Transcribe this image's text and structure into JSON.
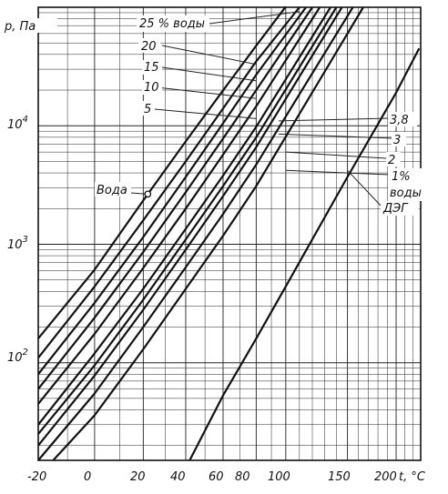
{
  "chart_data": {
    "type": "line",
    "title": "",
    "xlabel": "t, °C",
    "ylabel": "p, Па",
    "x_scale": "reciprocal-temperature",
    "y_scale": "log",
    "xlim": [
      -20,
      230
    ],
    "ylim": [
      15,
      100000
    ],
    "grid": true,
    "x_tick_labels": [
      "-20",
      "0",
      "20",
      "40",
      "60",
      "80",
      "100",
      "150",
      "200"
    ],
    "y_tick_labels": [
      {
        "base": "10",
        "exp": "2",
        "value": 100
      },
      {
        "base": "10",
        "exp": "3",
        "value": 1000
      },
      {
        "base": "10",
        "exp": "4",
        "value": 10000
      }
    ],
    "series": [
      {
        "name": "Вода",
        "x": [
          -20,
          0,
          20,
          40,
          60,
          80,
          100
        ],
        "y": [
          160,
          610,
          2340,
          7380,
          19900,
          47400,
          101325
        ],
        "marker_at": [
          22,
          2650
        ]
      },
      {
        "name": "25 % воды",
        "x": [
          -20,
          0,
          20,
          40,
          60,
          80,
          110
        ],
        "y": [
          110,
          440,
          1590,
          5000,
          14000,
          35000,
          100000
        ]
      },
      {
        "name": "20",
        "x": [
          -20,
          0,
          20,
          40,
          60,
          80,
          115
        ],
        "y": [
          80,
          320,
          1150,
          3700,
          10500,
          27000,
          100000
        ]
      },
      {
        "name": "15",
        "x": [
          -20,
          0,
          20,
          40,
          60,
          80,
          120
        ],
        "y": [
          60,
          240,
          860,
          2750,
          7800,
          20000,
          100000
        ]
      },
      {
        "name": "10",
        "x": [
          -20,
          0,
          20,
          40,
          60,
          80,
          126
        ],
        "y": [
          45,
          175,
          630,
          2000,
          5700,
          14600,
          100000
        ]
      },
      {
        "name": "5",
        "x": [
          -20,
          0,
          20,
          40,
          60,
          80,
          135
        ],
        "y": [
          30,
          120,
          420,
          1350,
          3800,
          9800,
          100000
        ]
      },
      {
        "name": "3,8",
        "x": [
          -20,
          0,
          20,
          40,
          60,
          80,
          140
        ],
        "y": [
          25,
          95,
          340,
          1100,
          3100,
          8000,
          100000
        ]
      },
      {
        "name": "3",
        "x": [
          -20,
          0,
          20,
          40,
          60,
          80,
          145
        ],
        "y": [
          20,
          78,
          280,
          900,
          2550,
          6600,
          100000
        ]
      },
      {
        "name": "2",
        "x": [
          -20,
          0,
          20,
          40,
          60,
          80,
          155
        ],
        "y": [
          15,
          55,
          200,
          640,
          1800,
          4700,
          100000
        ]
      },
      {
        "name": "1 % воды",
        "x": [
          -15,
          0,
          20,
          40,
          60,
          80,
          165
        ],
        "y": [
          15,
          36,
          130,
          420,
          1180,
          3100,
          100000
        ]
      },
      {
        "name": "ДЭГ",
        "x": [
          42,
          60,
          80,
          100,
          150,
          200,
          228
        ],
        "y": [
          15,
          53,
          160,
          440,
          3700,
          19000,
          45000
        ]
      }
    ]
  },
  "page": {
    "x_tick_texts": [
      "-20",
      "0",
      "20",
      "40",
      "60",
      "80",
      "100",
      "150",
      "200"
    ],
    "x_axis_unit": "t, °C",
    "y_axis_unit": "p, Па",
    "y_ticks": [
      {
        "base": "10",
        "exp": "4"
      },
      {
        "base": "10",
        "exp": "3"
      },
      {
        "base": "10",
        "exp": "2"
      }
    ],
    "labels": {
      "water": "Вода",
      "s25": "25 % воды",
      "s20": "20",
      "s15": "15",
      "s10": "10",
      "s5": "5",
      "s38": "3,8",
      "s3": "3",
      "s2": "2",
      "s1_line1": "1%",
      "s1_line2": "воды",
      "deg": "ДЭГ"
    }
  }
}
